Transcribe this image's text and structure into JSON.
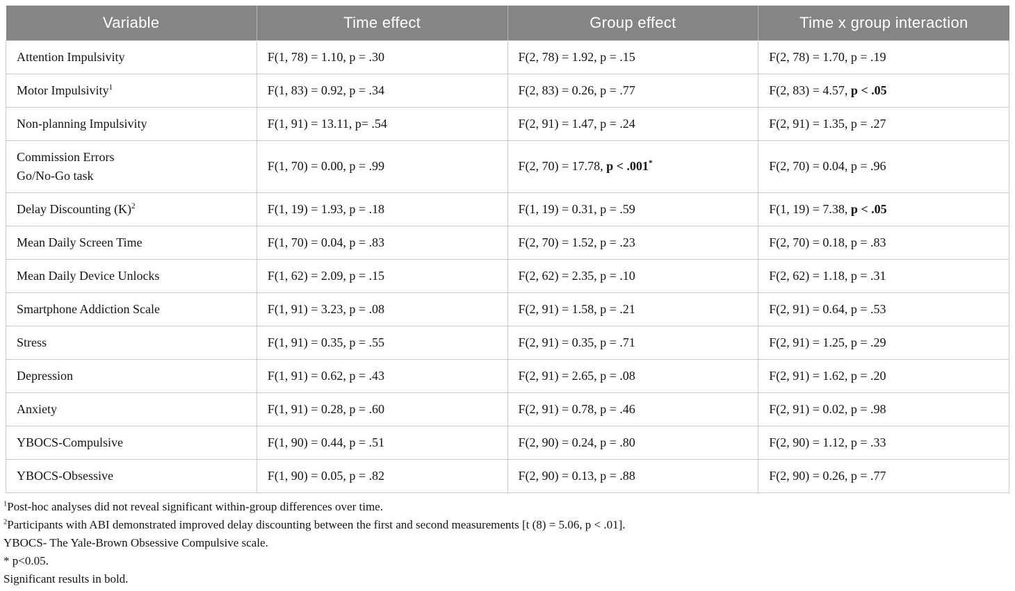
{
  "colors": {
    "header_bg": "#858585",
    "header_text": "#ffffff",
    "border": "#cbcbcb",
    "body_text": "#141414"
  },
  "table": {
    "headers": [
      "Variable",
      "Time effect",
      "Group effect",
      "Time x group interaction"
    ],
    "rows": [
      {
        "variable": {
          "line1": "Attention Impulsivity",
          "line2": "",
          "sup": ""
        },
        "time": {
          "text": "F(1, 78) = 1.10, p = .30",
          "bold": "",
          "sup": ""
        },
        "group": {
          "text": "F(2, 78) = 1.92, p = .15",
          "bold": "",
          "sup": ""
        },
        "interaction": {
          "text": "F(2, 78) = 1.70, p = .19",
          "bold": "",
          "sup": ""
        }
      },
      {
        "variable": {
          "line1": "Motor Impulsivity",
          "line2": "",
          "sup": "1"
        },
        "time": {
          "text": "F(1, 83) = 0.92, p = .34",
          "bold": "",
          "sup": ""
        },
        "group": {
          "text": "F(2, 83) = 0.26, p = .77",
          "bold": "",
          "sup": ""
        },
        "interaction": {
          "text": "F(2, 83) = 4.57, ",
          "bold": "p < .05",
          "sup": ""
        }
      },
      {
        "variable": {
          "line1": "Non-planning Impulsivity",
          "line2": "",
          "sup": ""
        },
        "time": {
          "text": "F(1, 91) = 13.11, p= .54",
          "bold": "",
          "sup": ""
        },
        "group": {
          "text": "F(2, 91) = 1.47, p = .24",
          "bold": "",
          "sup": ""
        },
        "interaction": {
          "text": "F(2, 91) = 1.35, p = .27",
          "bold": "",
          "sup": ""
        }
      },
      {
        "variable": {
          "line1": "Commission Errors",
          "line2": "Go/No-Go task",
          "sup": ""
        },
        "time": {
          "text": "F(1, 70) = 0.00, p = .99",
          "bold": "",
          "sup": ""
        },
        "group": {
          "text": "F(2, 70) = 17.78, ",
          "bold": "p < .001",
          "sup": "*"
        },
        "interaction": {
          "text": "F(2, 70) = 0.04, p = .96",
          "bold": "",
          "sup": ""
        }
      },
      {
        "variable": {
          "line1": "Delay Discounting (K)",
          "line2": "",
          "sup": "2"
        },
        "time": {
          "text": "F(1, 19) = 1.93, p = .18",
          "bold": "",
          "sup": ""
        },
        "group": {
          "text": "F(1, 19) = 0.31, p = .59",
          "bold": "",
          "sup": ""
        },
        "interaction": {
          "text": "F(1, 19) = 7.38, ",
          "bold": "p < .05",
          "sup": ""
        }
      },
      {
        "variable": {
          "line1": "Mean Daily Screen Time",
          "line2": "",
          "sup": ""
        },
        "time": {
          "text": "F(1, 70) = 0.04, p = .83",
          "bold": "",
          "sup": ""
        },
        "group": {
          "text": "F(2, 70) = 1.52, p = .23",
          "bold": "",
          "sup": ""
        },
        "interaction": {
          "text": "F(2, 70) = 0.18, p = .83",
          "bold": "",
          "sup": ""
        }
      },
      {
        "variable": {
          "line1": "Mean Daily Device Unlocks",
          "line2": "",
          "sup": ""
        },
        "time": {
          "text": "F(1, 62) = 2.09, p = .15",
          "bold": "",
          "sup": ""
        },
        "group": {
          "text": "F(2, 62) = 2.35, p = .10",
          "bold": "",
          "sup": ""
        },
        "interaction": {
          "text": "F(2, 62) = 1.18, p = .31",
          "bold": "",
          "sup": ""
        }
      },
      {
        "variable": {
          "line1": "Smartphone Addiction Scale",
          "line2": "",
          "sup": ""
        },
        "time": {
          "text": "F(1, 91) = 3.23, p = .08",
          "bold": "",
          "sup": ""
        },
        "group": {
          "text": "F(2, 91) = 1.58, p = .21",
          "bold": "",
          "sup": ""
        },
        "interaction": {
          "text": "F(2, 91) = 0.64, p = .53",
          "bold": "",
          "sup": ""
        }
      },
      {
        "variable": {
          "line1": "Stress",
          "line2": "",
          "sup": ""
        },
        "time": {
          "text": "F(1, 91) = 0.35, p = .55",
          "bold": "",
          "sup": ""
        },
        "group": {
          "text": "F(2, 91) = 0.35, p = .71",
          "bold": "",
          "sup": ""
        },
        "interaction": {
          "text": "F(2, 91) = 1.25, p = .29",
          "bold": "",
          "sup": ""
        }
      },
      {
        "variable": {
          "line1": "Depression",
          "line2": "",
          "sup": ""
        },
        "time": {
          "text": "F(1, 91) = 0.62, p = .43",
          "bold": "",
          "sup": ""
        },
        "group": {
          "text": "F(2, 91) = 2.65, p = .08",
          "bold": "",
          "sup": ""
        },
        "interaction": {
          "text": "F(2, 91) = 1.62, p = .20",
          "bold": "",
          "sup": ""
        }
      },
      {
        "variable": {
          "line1": "Anxiety",
          "line2": "",
          "sup": ""
        },
        "time": {
          "text": "F(1, 91) = 0.28, p = .60",
          "bold": "",
          "sup": ""
        },
        "group": {
          "text": "F(2, 91) = 0.78, p = .46",
          "bold": "",
          "sup": ""
        },
        "interaction": {
          "text": "F(2, 91) = 0.02, p = .98",
          "bold": "",
          "sup": ""
        }
      },
      {
        "variable": {
          "line1": "YBOCS-Compulsive",
          "line2": "",
          "sup": ""
        },
        "time": {
          "text": "F(1, 90) = 0.44, p = .51",
          "bold": "",
          "sup": ""
        },
        "group": {
          "text": "F(2, 90) = 0.24, p = .80",
          "bold": "",
          "sup": ""
        },
        "interaction": {
          "text": "F(2, 90) = 1.12, p = .33",
          "bold": "",
          "sup": ""
        }
      },
      {
        "variable": {
          "line1": "YBOCS-Obsessive",
          "line2": "",
          "sup": ""
        },
        "time": {
          "text": "F(1, 90) = 0.05, p = .82",
          "bold": "",
          "sup": ""
        },
        "group": {
          "text": "F(2, 90) = 0.13, p = .88",
          "bold": "",
          "sup": ""
        },
        "interaction": {
          "text": "F(2, 90) = 0.26, p = .77",
          "bold": "",
          "sup": ""
        }
      }
    ],
    "footnotes": [
      {
        "sup": "1",
        "text": "Post-hoc analyses did not reveal significant within-group differences over time."
      },
      {
        "sup": "2",
        "text": "Participants with ABI demonstrated improved delay discounting between the first and second measurements [t (8) = 5.06, p < .01]."
      },
      {
        "sup": "",
        "text": "YBOCS- The Yale-Brown Obsessive Compulsive scale."
      },
      {
        "sup": "",
        "text": "* p<0.05."
      },
      {
        "sup": "",
        "text": "Significant results in bold."
      }
    ]
  }
}
